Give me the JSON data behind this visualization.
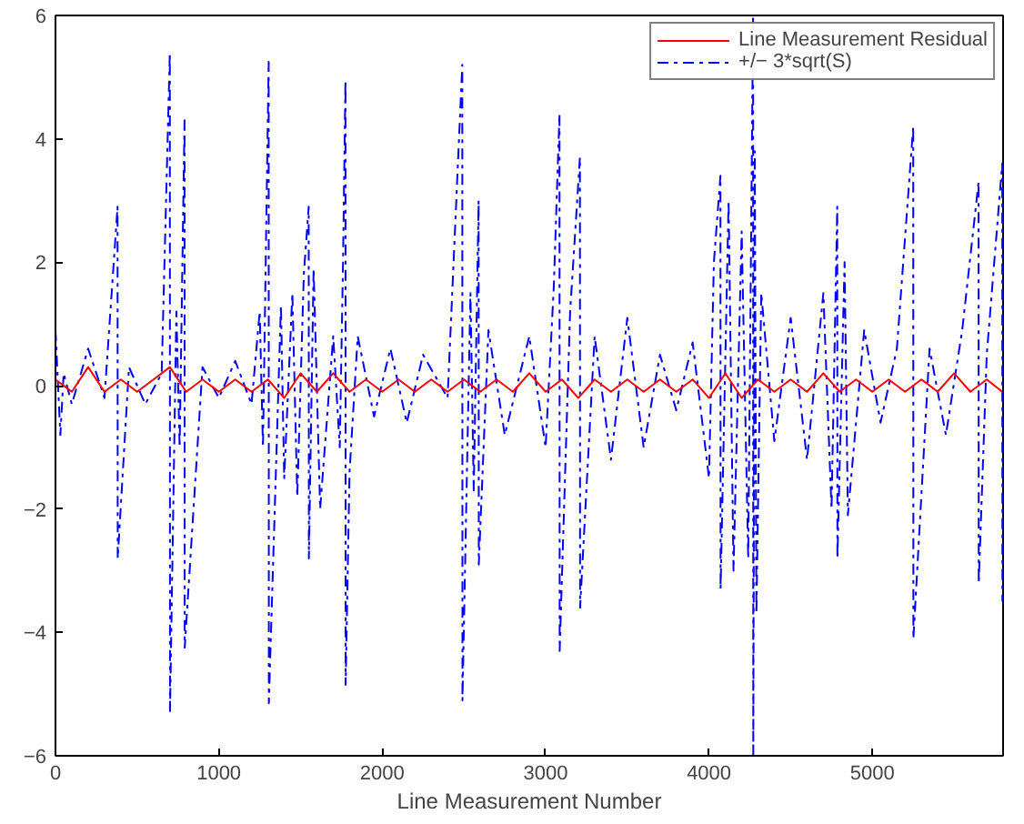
{
  "chart_data": {
    "type": "line",
    "xlabel": "Line Measurement Number",
    "xlim": [
      0,
      5800
    ],
    "ylim": [
      -6,
      6
    ],
    "xticks": [
      0,
      1000,
      2000,
      3000,
      4000,
      5000
    ],
    "yticks": [
      -6,
      -4,
      -2,
      0,
      2,
      4,
      6
    ],
    "grid": false,
    "legend": "top right",
    "marker": "none",
    "series": [
      {
        "name": "Line Measurement Residual",
        "color": "#ff0000",
        "line_style": "solid",
        "x": [
          0,
          100,
          200,
          300,
          400,
          500,
          600,
          700,
          800,
          900,
          1000,
          1100,
          1200,
          1300,
          1400,
          1500,
          1600,
          1700,
          1800,
          1900,
          2000,
          2100,
          2200,
          2300,
          2400,
          2500,
          2600,
          2700,
          2800,
          2900,
          3000,
          3100,
          3200,
          3300,
          3400,
          3500,
          3600,
          3700,
          3800,
          3900,
          4000,
          4100,
          4200,
          4300,
          4400,
          4500,
          4600,
          4700,
          4800,
          4900,
          5000,
          5100,
          5200,
          5300,
          5400,
          5500,
          5600,
          5700,
          5795
        ],
        "values": [
          0.1,
          -0.1,
          0.3,
          -0.1,
          0.1,
          -0.1,
          0.1,
          0.3,
          -0.1,
          0.1,
          -0.1,
          0.1,
          -0.1,
          0.1,
          -0.2,
          0.2,
          -0.1,
          0.2,
          -0.1,
          0.1,
          -0.1,
          0.1,
          -0.1,
          0.1,
          -0.1,
          0.1,
          -0.1,
          0.1,
          -0.1,
          0.2,
          -0.1,
          0.1,
          -0.2,
          0.1,
          -0.1,
          0.1,
          -0.1,
          0.1,
          -0.1,
          0.1,
          -0.2,
          0.2,
          -0.2,
          0.1,
          -0.1,
          0.1,
          -0.1,
          0.2,
          -0.1,
          0.1,
          -0.1,
          0.1,
          -0.1,
          0.1,
          -0.1,
          0.2,
          -0.1,
          0.1,
          -0.1
        ]
      },
      {
        "name": "+/− 3*sqrt(S)",
        "color": "#0000ff",
        "line_style": "dashed",
        "x": [
          0,
          30,
          50,
          100,
          200,
          300,
          380,
          381,
          450,
          550,
          650,
          700,
          701,
          740,
          760,
          790,
          791,
          900,
          1000,
          1100,
          1200,
          1250,
          1270,
          1305,
          1306,
          1380,
          1400,
          1450,
          1480,
          1520,
          1550,
          1551,
          1580,
          1620,
          1700,
          1740,
          1760,
          1775,
          1776,
          1800,
          1850,
          1950,
          2050,
          2150,
          2250,
          2400,
          2490,
          2491,
          2540,
          2560,
          2590,
          2591,
          2650,
          2750,
          2900,
          3000,
          3050,
          3085,
          3086,
          3150,
          3210,
          3211,
          3300,
          3400,
          3500,
          3600,
          3700,
          3800,
          3900,
          4000,
          4030,
          4070,
          4071,
          4120,
          4150,
          4200,
          4240,
          4270,
          4271,
          4280,
          4290,
          4320,
          4400,
          4500,
          4600,
          4700,
          4750,
          4785,
          4786,
          4830,
          4850,
          4950,
          5050,
          5150,
          5250,
          5251,
          5350,
          5450,
          5550,
          5650,
          5651,
          5700,
          5795,
          5796
        ],
        "values": [
          0.9,
          -0.8,
          0.2,
          -0.3,
          0.6,
          -0.2,
          2.9,
          -2.8,
          0.3,
          -0.3,
          0.2,
          5.4,
          -5.3,
          1.2,
          -1.0,
          4.3,
          -4.25,
          0.3,
          -0.2,
          0.4,
          -0.3,
          1.2,
          -1.0,
          5.25,
          -5.15,
          1.3,
          -1.5,
          1.5,
          -1.8,
          1.8,
          2.9,
          -2.8,
          1.9,
          -2.0,
          0.8,
          -1.0,
          2.0,
          4.95,
          -4.85,
          -1.4,
          0.8,
          -0.5,
          0.6,
          -0.6,
          0.5,
          -0.2,
          5.2,
          -5.1,
          1.5,
          -1.7,
          3.0,
          -2.9,
          0.9,
          -0.8,
          0.8,
          -1.0,
          1.6,
          4.4,
          -4.3,
          1.2,
          3.7,
          -3.6,
          0.8,
          -1.2,
          1.1,
          -1.0,
          0.5,
          -0.4,
          0.7,
          -1.5,
          2.0,
          3.4,
          -3.3,
          3.0,
          -3.0,
          2.5,
          -2.8,
          6,
          -6,
          3.8,
          -3.7,
          1.5,
          -0.9,
          1.1,
          -1.2,
          1.5,
          -2.0,
          2.9,
          -2.8,
          2.0,
          -2.1,
          0.9,
          -0.6,
          0.6,
          4.2,
          -4.1,
          0.6,
          -0.8,
          0.9,
          3.3,
          -3.2,
          0.5,
          3.6,
          -3.5
        ]
      }
    ]
  }
}
